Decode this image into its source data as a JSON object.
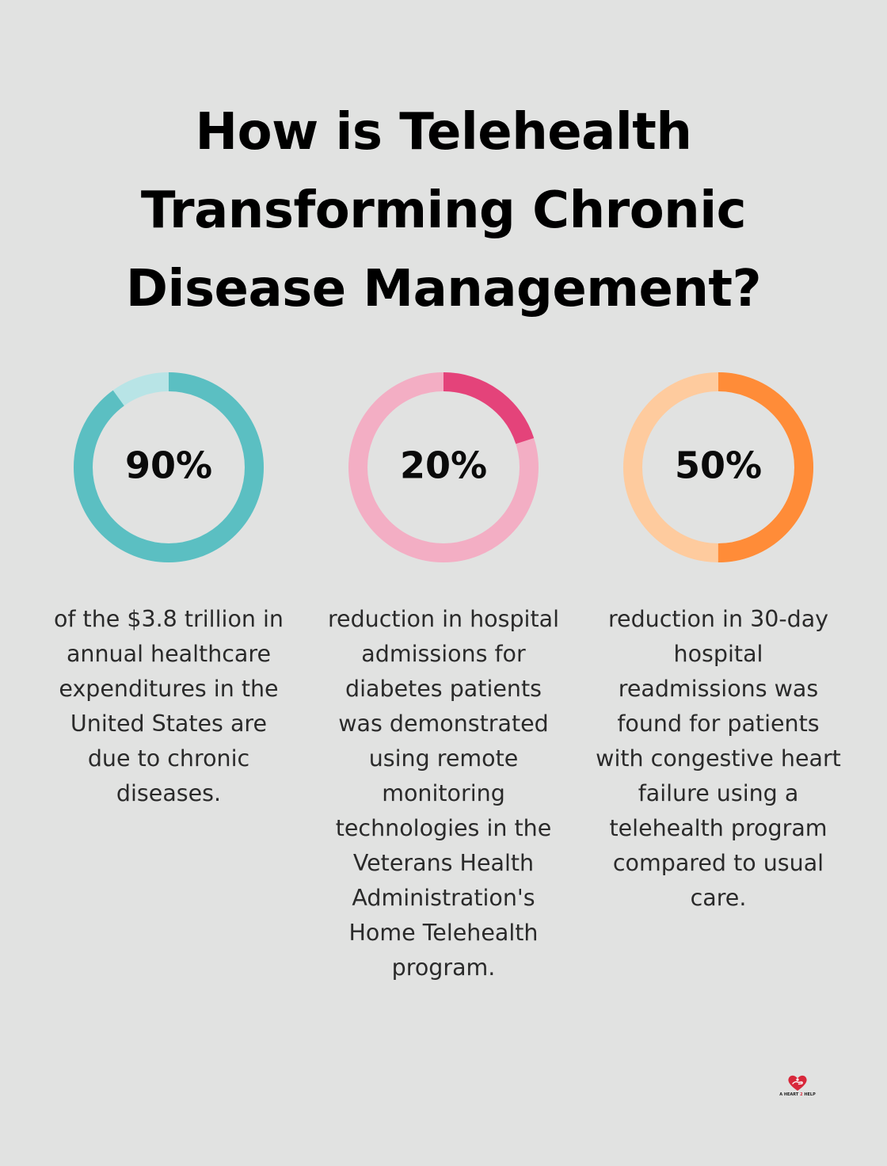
{
  "title_lines": [
    "How is Telehealth",
    "Transforming Chronic",
    "Disease Management?"
  ],
  "chart_data": [
    {
      "type": "pie",
      "label": "90%",
      "value": 90,
      "max": 100,
      "colors": {
        "filled": "#5bbfc2",
        "remainder": "#b8e4e6"
      },
      "description_lines": [
        "of the $3.8 trillion in",
        "annual healthcare",
        "expenditures in the",
        "United States are",
        "due to chronic",
        "diseases."
      ]
    },
    {
      "type": "pie",
      "label": "20%",
      "value": 20,
      "max": 100,
      "colors": {
        "filled": "#e4437a",
        "remainder": "#f3aec4"
      },
      "description_lines": [
        "reduction in hospital",
        "admissions for",
        "diabetes patients",
        "was demonstrated",
        "using remote",
        "monitoring",
        "technologies in the",
        "Veterans Health",
        "Administration's",
        "Home Telehealth",
        "program."
      ]
    },
    {
      "type": "pie",
      "label": "50%",
      "value": 50,
      "max": 100,
      "colors": {
        "filled": "#ff8c38",
        "remainder": "#fecb9e"
      },
      "description_lines": [
        "reduction in 30-day",
        "hospital",
        "readmissions was",
        "found for patients",
        "with congestive heart",
        "failure using a",
        "telehealth program",
        "compared to usual",
        "care."
      ]
    }
  ],
  "logo": {
    "icon": "heart-hand-icon",
    "text_part1": "A HEART",
    "text_part2": "2",
    "text_part3": "HELP",
    "color": "#d8283b"
  }
}
